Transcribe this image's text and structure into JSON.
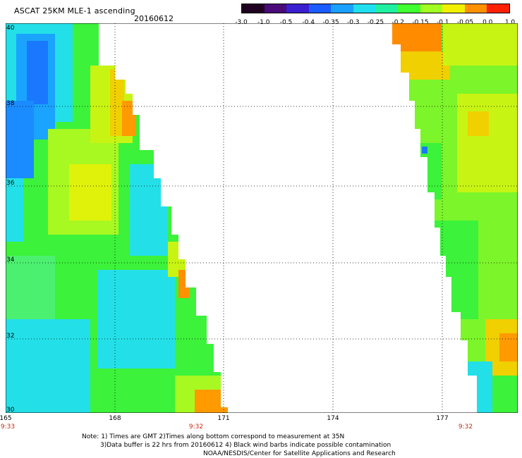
{
  "header": {
    "title": "ASCAT 25KM MLE-1 ascending",
    "date": "20160612"
  },
  "colorbar": {
    "colors": [
      "#200020",
      "#4a0a78",
      "#3a1fd0",
      "#1a5cff",
      "#1aa0ff",
      "#20e0f0",
      "#20f0a0",
      "#40ff30",
      "#a0ff20",
      "#f0f000",
      "#ff9000",
      "#ff2000"
    ],
    "labels": [
      "-3.0",
      "-1.0",
      "-0.5",
      "-0.4",
      "-0.35",
      "-0.3",
      "-0.25",
      "-0.2",
      "-0.15",
      "-0.1",
      "-0.05",
      "0.0",
      "1.0"
    ]
  },
  "map": {
    "lon_ticks": [
      "165",
      "168",
      "171",
      "174",
      "177"
    ],
    "lat_ticks": [
      "40",
      "38",
      "36",
      "34",
      "32",
      "30"
    ],
    "swath_times": [
      "9:33",
      "9:32",
      "9:32"
    ]
  },
  "notes": {
    "line1": "Note: 1) Times are GMT 2)Times along bottom correspond to measurement at 35N",
    "line2": "3)Data buffer is 22 hrs from 20160612 4) Black wind barbs indicate possible contamination",
    "line3": "NOAA/NESDIS/Center for Satellite Applications and Research"
  }
}
